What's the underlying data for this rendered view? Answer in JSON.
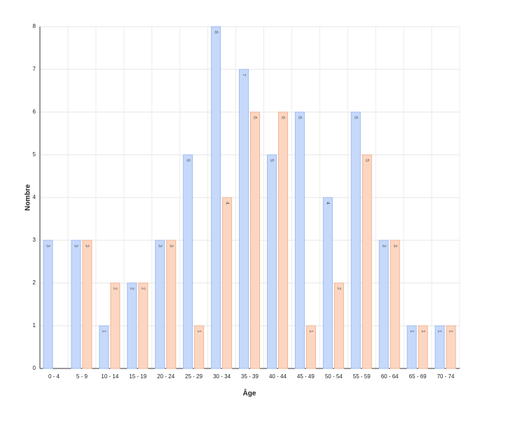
{
  "chart_data": {
    "type": "bar",
    "x_label": "Âge",
    "y_label": "Nombre",
    "categories": [
      "0 - 4",
      "5 - 9",
      "10 - 14",
      "15 - 19",
      "20 - 24",
      "25 - 29",
      "30 - 34",
      "35 - 39",
      "40 - 44",
      "45 - 49",
      "50 - 54",
      "55 - 59",
      "60 - 64",
      "65 - 69",
      "70 - 74"
    ],
    "series": [
      {
        "color": "#c6d9fb",
        "values": [
          3,
          3,
          1,
          2,
          3,
          5,
          8,
          7,
          5,
          6,
          4,
          6,
          3,
          1,
          1
        ]
      },
      {
        "color": "#fdd6c1",
        "values": [
          null,
          3,
          2,
          2,
          3,
          1,
          4,
          6,
          6,
          1,
          2,
          5,
          3,
          1,
          1
        ]
      }
    ],
    "ylim": [
      0,
      8
    ],
    "yticks": [
      0,
      1,
      2,
      3,
      4,
      5,
      6,
      7,
      8
    ],
    "grid": true
  }
}
